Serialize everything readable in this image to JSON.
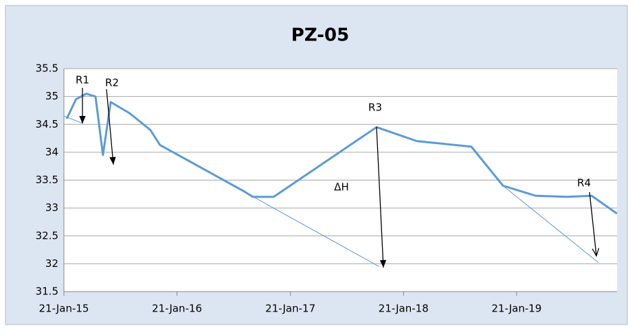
{
  "chart_data": {
    "type": "line",
    "title": "PZ-05",
    "series": [
      {
        "color": "#5b9bd5",
        "width": 3,
        "x": [
          "2015-01-30",
          "2015-03-01",
          "2015-04-03",
          "2015-05-03",
          "2015-05-27",
          "2015-06-21",
          "2015-08-21",
          "2015-10-27",
          "2015-11-27",
          "2016-08-24",
          "2016-09-22",
          "2016-11-28",
          "2017-10-26",
          "2018-03-05",
          "2018-08-28",
          "2018-12-08",
          "2019-03-23",
          "2019-07-04",
          "2019-09-20",
          "2019-12-11"
        ],
        "values": [
          34.6,
          34.95,
          35.05,
          35.0,
          33.95,
          34.9,
          34.7,
          34.4,
          34.13,
          33.3,
          33.2,
          33.2,
          34.45,
          34.2,
          34.1,
          33.4,
          33.22,
          33.2,
          33.22,
          32.9
        ]
      },
      {
        "color": "#5b9bd5",
        "width": 1,
        "x": [
          "2015-01-21",
          "2015-03-22"
        ],
        "values": [
          34.65,
          34.52
        ]
      },
      {
        "color": "#5b9bd5",
        "width": 1,
        "x": [
          "2015-11-27",
          "2017-11-03"
        ],
        "values": [
          34.13,
          31.95
        ]
      },
      {
        "color": "#5b9bd5",
        "width": 1,
        "x": [
          "2018-12-08",
          "2019-10-12"
        ],
        "values": [
          33.4,
          32.02
        ]
      }
    ],
    "annotations": [
      "R1",
      "R2",
      "R3",
      "ΔH",
      "R4"
    ],
    "xlim": [
      "2015-01-21",
      "2019-12-11"
    ],
    "xticks": [
      {
        "value": "2015-01-21",
        "label": "21-Jan-15"
      },
      {
        "value": "2016-01-21",
        "label": "21-Jan-16"
      },
      {
        "value": "2017-01-21",
        "label": "21-Jan-17"
      },
      {
        "value": "2018-01-21",
        "label": "21-Jan-18"
      },
      {
        "value": "2019-01-21",
        "label": "21-Jan-19"
      }
    ],
    "ylim": [
      31.5,
      35.5
    ],
    "yticks": [
      31.5,
      32,
      32.5,
      33,
      33.5,
      34,
      34.5,
      35,
      35.5
    ],
    "grid": true
  }
}
